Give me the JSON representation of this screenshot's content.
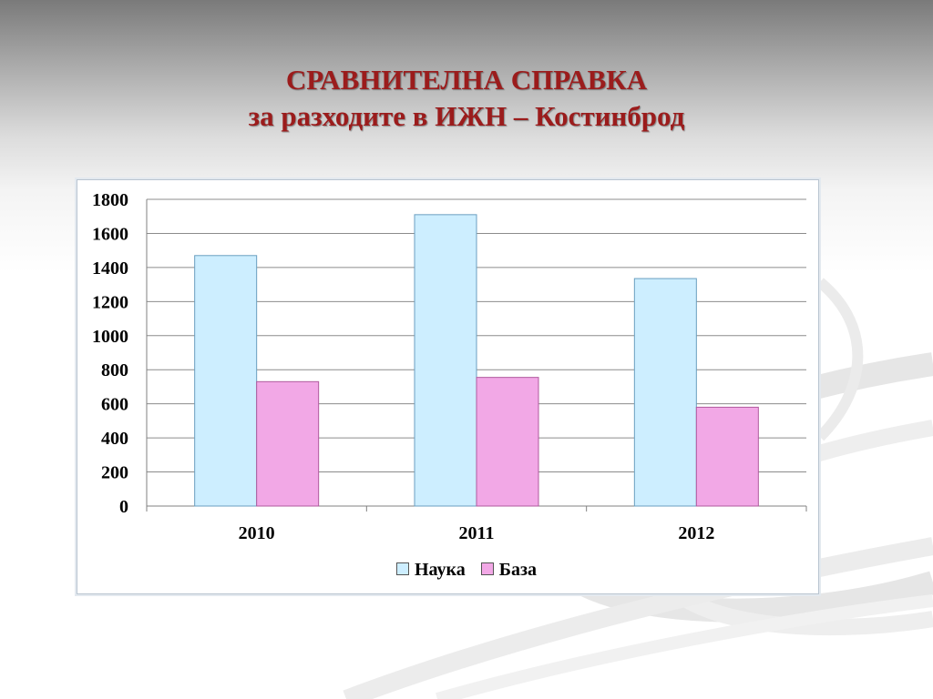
{
  "slide": {
    "title_line1": "СРАВНИТЕЛНА СПРАВКА",
    "title_line2": "за разходите в ИЖН – Костинброд"
  },
  "colors": {
    "title": "#9b1c1c",
    "series_nauka": "#cdeeff",
    "series_baza": "#f2a8e6",
    "grid": "#808080"
  },
  "chart_data": {
    "type": "bar",
    "categories": [
      "2010",
      "2011",
      "2012"
    ],
    "series": [
      {
        "name": "Наука",
        "values": [
          1470,
          1710,
          1335
        ],
        "color": "#cdeeff",
        "stroke": "#6a9fc0"
      },
      {
        "name": "База",
        "values": [
          730,
          755,
          580
        ],
        "color": "#f2a8e6",
        "stroke": "#b05a9e"
      }
    ],
    "ylim": [
      0,
      1800
    ],
    "yticks": [
      0,
      200,
      400,
      600,
      800,
      1000,
      1200,
      1400,
      1600,
      1800
    ],
    "grid": true,
    "legend": "bottom"
  }
}
